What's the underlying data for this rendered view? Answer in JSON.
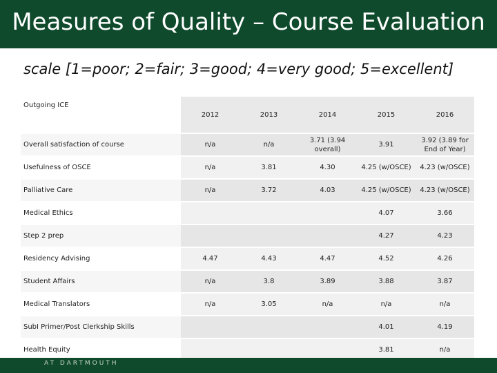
{
  "header": {
    "title": "Measures of Quality – Course Evaluation",
    "subtitle": "scale [1=poor; 2=fair; 3=good; 4=very good; 5=excellent]"
  },
  "table": {
    "header": [
      "Outgoing ICE",
      "2012",
      "2013",
      "2014",
      "2015",
      "2016"
    ],
    "rows": [
      [
        "Overall satisfaction of course",
        "n/a",
        "n/a",
        "3.71 (3.94 overall)",
        "3.91",
        "3.92 (3.89 for End of Year)"
      ],
      [
        "Usefulness of OSCE",
        "n/a",
        "3.81",
        "4.30",
        "4.25 (w/OSCE)",
        "4.23 (w/OSCE)"
      ],
      [
        "Palliative Care",
        "n/a",
        "3.72",
        "4.03",
        "4.25 (w/OSCE)",
        "4.23 (w/OSCE)"
      ],
      [
        "Medical Ethics",
        null,
        null,
        null,
        "4.07",
        "3.66"
      ],
      [
        "Step 2 prep",
        null,
        null,
        null,
        "4.27",
        "4.23"
      ],
      [
        "Residency Advising",
        "4.47",
        "4.43",
        "4.47",
        "4.52",
        "4.26"
      ],
      [
        "Student Affairs",
        "n/a",
        "3.8",
        "3.89",
        "3.88",
        "3.87"
      ],
      [
        "Medical Translators",
        "n/a",
        "3.05",
        "n/a",
        "n/a",
        "n/a"
      ],
      [
        "SubI Primer/Post Clerkship Skills",
        null,
        null,
        null,
        "4.01",
        "4.19"
      ],
      [
        "Health Equity",
        null,
        null,
        null,
        "3.81",
        "n/a"
      ]
    ]
  },
  "footer": {
    "text": "AT DARTMOUTH"
  }
}
